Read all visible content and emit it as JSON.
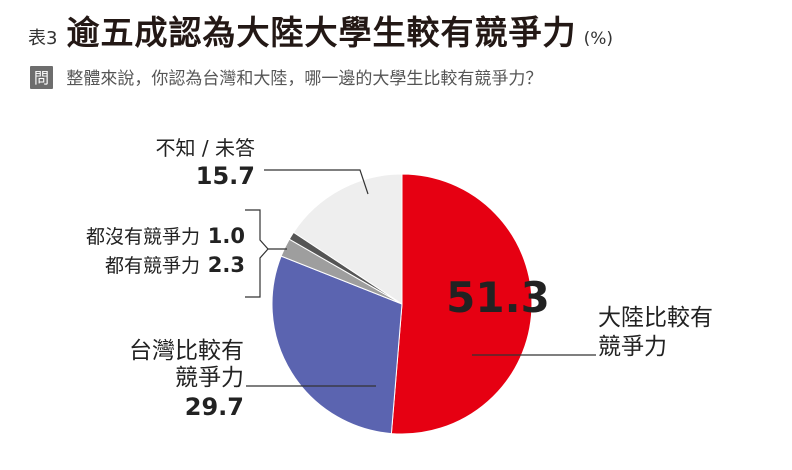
{
  "header": {
    "table_no": "表3",
    "title": "逾五成認為大陸大學生較有競爭力",
    "unit": "(%)"
  },
  "question": {
    "badge": "問",
    "text": "整體來說，你認為台灣和大陸，哪一邊的大學生比較有競爭力？"
  },
  "chart_data": {
    "type": "pie",
    "slices": [
      {
        "label": "大陸比較有競爭力",
        "value": 51.3,
        "color": "#e60012"
      },
      {
        "label": "台灣比較有競爭力",
        "value": 29.7,
        "color": "#5b64b0"
      },
      {
        "label": "都有競爭力",
        "value": 2.3,
        "color": "#9e9e9e"
      },
      {
        "label": "都沒有競爭力",
        "value": 1.0,
        "color": "#555555"
      },
      {
        "label": "不知／未答",
        "value": 15.7,
        "color": "#eeeeee"
      }
    ]
  },
  "labels": {
    "mainland_line1": "大陸比較有",
    "mainland_line2": "競爭力",
    "mainland_value": "51.3",
    "taiwan_line1": "台灣比較有",
    "taiwan_line2": "競爭力",
    "taiwan_value": "29.7",
    "both_label": "都有競爭力",
    "both_value": "2.3",
    "neither_label": "都沒有競爭力",
    "neither_value": "1.0",
    "unknown_label": "不知 / 未答",
    "unknown_value": "15.7"
  }
}
